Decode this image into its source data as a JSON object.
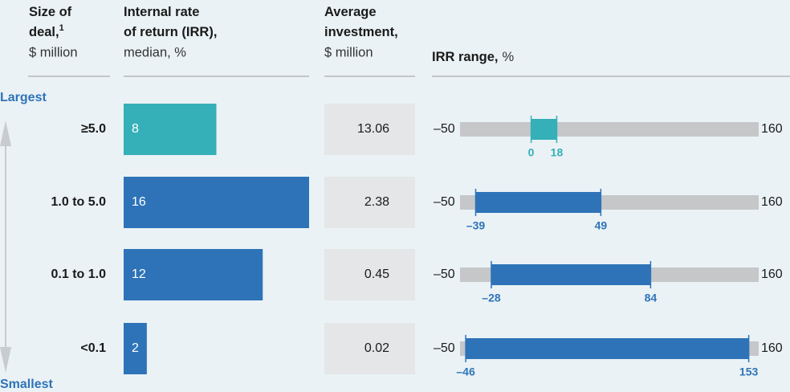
{
  "chart_data": {
    "type": "infographic",
    "headers": [
      {
        "lines": [
          "Size of",
          "deal,"
        ],
        "note": "1",
        "unit": "$ million"
      },
      {
        "lines": [
          "Internal rate",
          "of return (IRR),"
        ],
        "unit": "median, %"
      },
      {
        "lines": [
          "Average",
          "investment,"
        ],
        "unit": "$ million"
      },
      {
        "lines": [
          "IRR range,"
        ],
        "unit": "%"
      }
    ],
    "top_label": "Largest",
    "bottom_label": "Smallest",
    "categories": [
      "≥5.0",
      "1.0 to 5.0",
      "0.1 to 1.0",
      "<0.1"
    ],
    "colors": [
      "#35b0b8",
      "#2e73b8",
      "#2e73b8",
      "#2e73b8"
    ],
    "irr_median": {
      "values": [
        8,
        16,
        12,
        2
      ],
      "xlim": [
        0,
        16
      ]
    },
    "avg_investment": {
      "values": [
        13.06,
        2.38,
        0.45,
        0.02
      ]
    },
    "range": {
      "xlim": [
        -50,
        160
      ],
      "xticks": [
        {
          "value": -50,
          "label": "–50"
        },
        160
      ],
      "min": [
        0,
        -39,
        -28,
        -46
      ],
      "min_labels": [
        "0",
        "–39",
        "–28",
        "–46"
      ],
      "max": [
        18,
        49,
        84,
        153
      ],
      "track_color": "#c5c7c9"
    }
  }
}
